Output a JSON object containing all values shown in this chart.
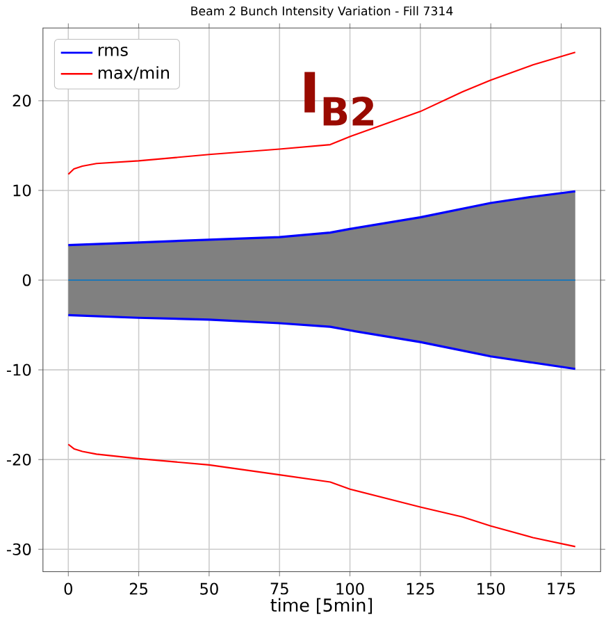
{
  "chart_data": {
    "type": "line",
    "title": "Beam 2 Bunch Intensity Variation - Fill 7314",
    "xlabel": "time [5min]",
    "x": [
      0,
      25,
      50,
      75,
      93,
      100,
      125,
      150,
      165,
      180
    ],
    "series": [
      {
        "color": "#1f77b4",
        "values": [
          0,
          0,
          0,
          0,
          0,
          0,
          0,
          0,
          0,
          0
        ],
        "lower": [
          -3.9,
          -4.2,
          -4.4,
          -4.8,
          -5.2,
          -5.6,
          -6.9,
          -8.5,
          -9.2,
          -9.9
        ],
        "upper": [
          3.9,
          4.2,
          4.5,
          4.8,
          5.3,
          5.7,
          7.0,
          8.6,
          9.3,
          9.9
        ]
      },
      {
        "name": "rms",
        "color": "#0000ff",
        "values": [
          3.9,
          4.2,
          4.5,
          4.8,
          5.3,
          5.7,
          7.0,
          8.6,
          9.3,
          9.9
        ]
      },
      {
        "color": "#0000ff",
        "values": [
          -3.9,
          -4.2,
          -4.4,
          -4.8,
          -5.2,
          -5.6,
          -6.9,
          -8.5,
          -9.2,
          -9.9
        ]
      },
      {
        "name": "max/min",
        "color": "#ff0000",
        "x": [
          0,
          2,
          5,
          10,
          25,
          50,
          75,
          93,
          100,
          125,
          140,
          150,
          165,
          180
        ],
        "values": [
          11.8,
          12.4,
          12.7,
          13.0,
          13.3,
          14.0,
          14.6,
          15.1,
          16.0,
          18.8,
          21.0,
          22.3,
          24.0,
          25.4
        ]
      },
      {
        "color": "#ff0000",
        "x": [
          0,
          2,
          5,
          10,
          25,
          50,
          75,
          93,
          100,
          125,
          140,
          150,
          165,
          180
        ],
        "values": [
          -18.3,
          -18.8,
          -19.1,
          -19.4,
          -19.9,
          -20.6,
          -21.7,
          -22.5,
          -23.3,
          -25.3,
          -26.4,
          -27.4,
          -28.7,
          -29.7
        ]
      }
    ],
    "annotations": [
      "I$_{B2}$"
    ],
    "xlim": [
      -9,
      189
    ],
    "ylim": [
      -32.5,
      28.1
    ],
    "xticks": [
      0,
      25,
      50,
      75,
      100,
      125,
      150,
      175
    ],
    "yticks": [
      -30,
      -20,
      -10,
      0,
      10,
      20
    ],
    "grid": true,
    "legend": "top left",
    "marker": "none",
    "line_style": "solid"
  }
}
